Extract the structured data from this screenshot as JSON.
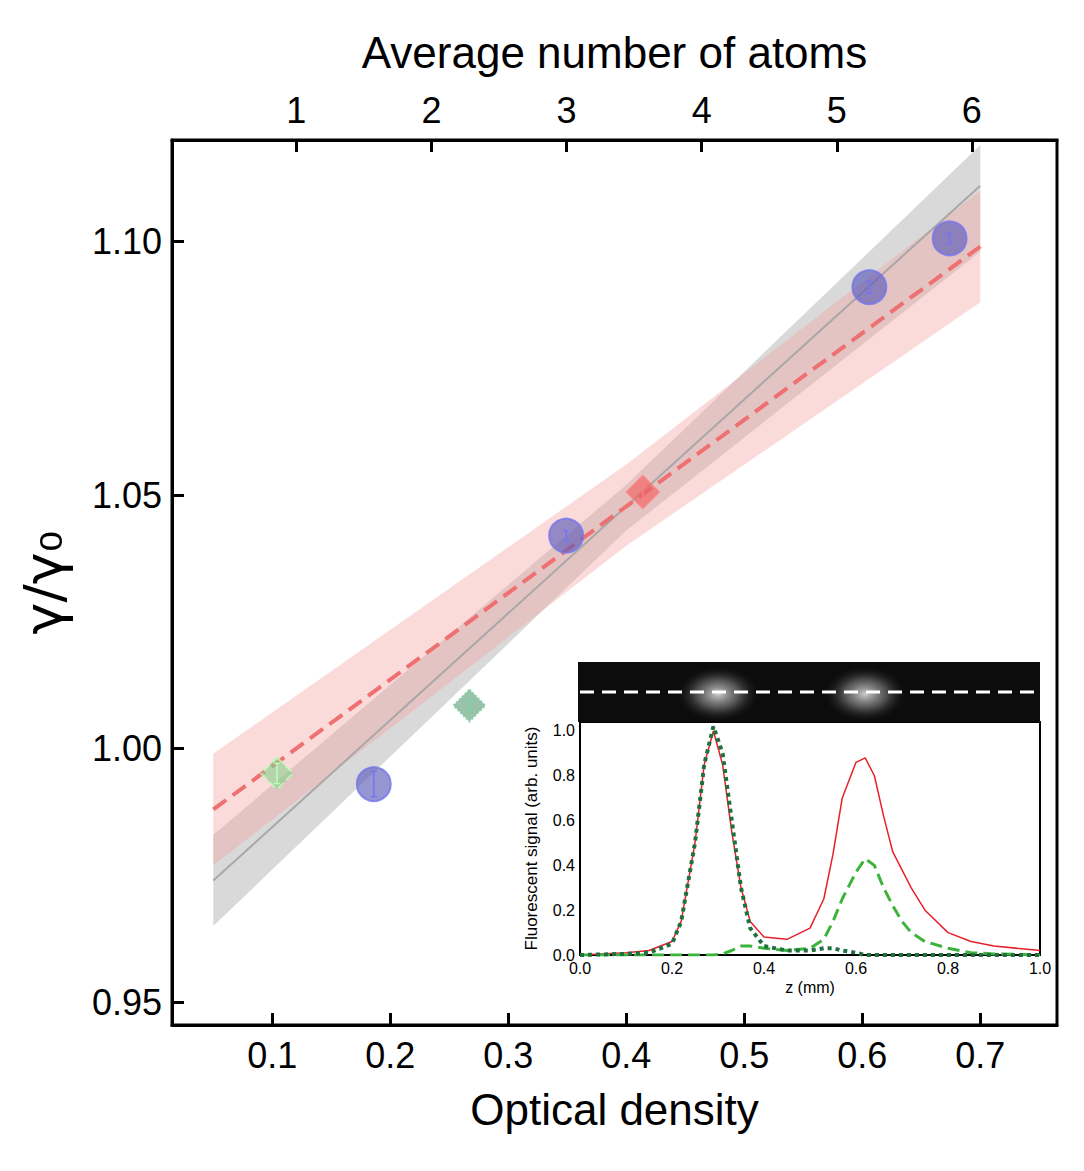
{
  "chart_data": [
    {
      "type": "scatter",
      "x_label": "Optical density",
      "y_label": "γ/γ₀",
      "x2_label": "Average number of atoms",
      "xlim": [
        0.015,
        0.765
      ],
      "xticks": [
        0.1,
        0.2,
        0.3,
        0.4,
        0.5,
        0.6,
        0.7
      ],
      "x2lim": [
        0.08,
        6.63
      ],
      "x2ticks": [
        1,
        2,
        3,
        4,
        5,
        6
      ],
      "ylim": [
        0.9455,
        1.12
      ],
      "yticks": [
        0.95,
        {
          "value": 1,
          "label": "1.00"
        },
        1.05,
        {
          "value": 1.1,
          "label": "1.10"
        }
      ],
      "grid": false,
      "series": [
        {
          "type": "band",
          "color": "#a0a0a0",
          "x": [
            0.05,
            0.4,
            0.7
          ],
          "lower": [
            0.965,
            1.043,
            1.098
          ],
          "upper": [
            0.983,
            1.052,
            1.119
          ]
        },
        {
          "type": "band",
          "color": "#f4a3a3",
          "x": [
            0.05,
            0.4,
            0.7
          ],
          "lower": [
            0.977,
            1.04,
            1.088
          ],
          "upper": [
            0.999,
            1.056,
            1.11
          ]
        },
        {
          "type": "line",
          "color": "#a8a8a8",
          "line_style": "solid",
          "x": [
            0.05,
            0.7
          ],
          "values": [
            0.974,
            1.111
          ]
        },
        {
          "type": "line",
          "color": "#ee7070",
          "line_style": "dashed",
          "x": [
            0.05,
            0.7
          ],
          "values": [
            0.988,
            1.099
          ]
        },
        {
          "type": "scatter",
          "color": "#5a5ab8",
          "marker": "circle",
          "line_style": "solid",
          "x": [
            0.186,
            0.349,
            0.606,
            0.674
          ],
          "values": [
            0.993,
            1.042,
            1.091,
            1.1006
          ],
          "errors": [
            0.0025,
            0.001,
            0.0012,
            0.001
          ]
        },
        {
          "type": "scatter",
          "color": "#f06060",
          "marker": "diamond",
          "line_style": "solid",
          "x": [
            0.414
          ],
          "values": [
            1.0506
          ],
          "errors": [
            0.0015
          ]
        },
        {
          "type": "scatter",
          "color": "#8fd08f",
          "marker": "diamond",
          "line_style": "dashed",
          "x": [
            0.104
          ],
          "values": [
            0.9951
          ],
          "errors": [
            0.002
          ]
        },
        {
          "type": "scatter",
          "color": "#5fa07a",
          "marker": "diamond",
          "line_style": "dotted",
          "x": [
            0.267
          ],
          "values": [
            1.0085
          ],
          "errors": [
            0.0012
          ]
        }
      ]
    },
    {
      "type": "line",
      "x_label": "z (mm)",
      "y_label": "Fluorescent signal (arb. units)",
      "xlim": [
        0,
        1
      ],
      "xticks": [
        {
          "value": 0,
          "label": "0.0"
        },
        0.2,
        0.4,
        0.6,
        0.8,
        {
          "value": 1,
          "label": "1.0"
        }
      ],
      "ylim": [
        0,
        1.04
      ],
      "yticks": [
        {
          "value": 0,
          "label": "0.0"
        },
        0.2,
        0.4,
        0.6,
        0.8,
        {
          "value": 1,
          "label": "1.0"
        }
      ],
      "grid": false,
      "x": [
        0,
        0.1,
        0.15,
        0.2,
        0.22,
        0.25,
        0.27,
        0.29,
        0.31,
        0.33,
        0.35,
        0.37,
        0.4,
        0.45,
        0.5,
        0.53,
        0.55,
        0.57,
        0.6,
        0.62,
        0.64,
        0.66,
        0.68,
        0.7,
        0.72,
        0.75,
        0.8,
        0.85,
        0.9,
        1
      ],
      "series": [
        {
          "color": "#e8202a",
          "line_style": "solid",
          "values": [
            0,
            0.01,
            0.02,
            0.06,
            0.15,
            0.5,
            0.85,
            1,
            0.85,
            0.55,
            0.3,
            0.15,
            0.08,
            0.07,
            0.12,
            0.25,
            0.45,
            0.7,
            0.86,
            0.88,
            0.8,
            0.62,
            0.46,
            0.38,
            0.3,
            0.2,
            0.1,
            0.06,
            0.04,
            0.02
          ]
        },
        {
          "color": "#3cb43c",
          "line_style": "dashed",
          "values": [
            0,
            0,
            0,
            0,
            0,
            0,
            0,
            0,
            0.005,
            0.02,
            0.04,
            0.04,
            0.03,
            0.02,
            0.03,
            0.07,
            0.15,
            0.25,
            0.37,
            0.43,
            0.4,
            0.3,
            0.22,
            0.15,
            0.1,
            0.06,
            0.03,
            0.01,
            0.005,
            0
          ]
        },
        {
          "color": "#1f6f3f",
          "line_style": "dotted",
          "values": [
            0,
            0.005,
            0.01,
            0.05,
            0.15,
            0.5,
            0.85,
            1.02,
            0.9,
            0.6,
            0.3,
            0.12,
            0.04,
            0.02,
            0.02,
            0.03,
            0.03,
            0.02,
            0.01,
            0,
            0,
            0,
            0,
            0,
            0,
            0,
            0,
            0,
            0,
            0
          ]
        }
      ]
    }
  ]
}
